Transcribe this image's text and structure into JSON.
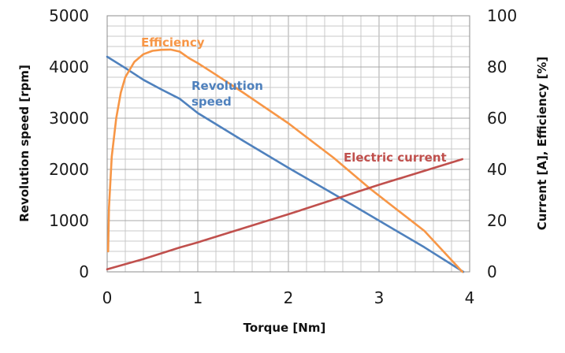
{
  "chart_data": {
    "type": "line",
    "xlabel": "Torque [Nm]",
    "ylabel_left": "Revolution speed [rpm]",
    "ylabel_right": "Current [A], Efficiency [%]",
    "x_ticks": [
      "0",
      "1",
      "2",
      "3",
      "4"
    ],
    "y_left_ticks": [
      "0",
      "1000",
      "2000",
      "3000",
      "4000",
      "5000"
    ],
    "y_right_ticks": [
      "0",
      "20",
      "40",
      "60",
      "80",
      "100"
    ],
    "xlim": [
      0,
      4
    ],
    "ylim_left": [
      0,
      5000
    ],
    "ylim_right": [
      0,
      100
    ],
    "grid": true,
    "series": [
      {
        "name": "Revolution speed",
        "name_lines": [
          "Revolution",
          "speed"
        ],
        "axis": "left",
        "color": "#4f81bd",
        "points": [
          [
            0,
            4200
          ],
          [
            0.2,
            3980
          ],
          [
            0.4,
            3750
          ],
          [
            0.6,
            3560
          ],
          [
            0.8,
            3380
          ],
          [
            1.0,
            3100
          ],
          [
            1.5,
            2560
          ],
          [
            2.0,
            2030
          ],
          [
            2.5,
            1520
          ],
          [
            3.0,
            1000
          ],
          [
            3.5,
            480
          ],
          [
            3.93,
            0
          ]
        ]
      },
      {
        "name": "Efficiency",
        "axis": "right",
        "color": "#f79646",
        "points": [
          [
            0.01,
            8
          ],
          [
            0.02,
            25
          ],
          [
            0.05,
            45
          ],
          [
            0.1,
            60
          ],
          [
            0.15,
            70
          ],
          [
            0.2,
            76
          ],
          [
            0.3,
            82
          ],
          [
            0.4,
            85
          ],
          [
            0.5,
            86.3
          ],
          [
            0.6,
            86.7
          ],
          [
            0.7,
            86.8
          ],
          [
            0.8,
            86
          ],
          [
            0.9,
            83.5
          ],
          [
            1.0,
            81.5
          ],
          [
            1.2,
            77
          ],
          [
            1.5,
            70
          ],
          [
            2.0,
            58
          ],
          [
            2.5,
            44.5
          ],
          [
            2.9,
            32.5
          ],
          [
            3.5,
            16
          ],
          [
            3.92,
            0
          ]
        ]
      },
      {
        "name": "Electric current",
        "axis": "right",
        "color": "#c0504d",
        "points": [
          [
            0,
            1
          ],
          [
            0.4,
            5
          ],
          [
            0.8,
            9.5
          ],
          [
            1.0,
            11.5
          ],
          [
            2.0,
            22.5
          ],
          [
            3.0,
            34
          ],
          [
            3.92,
            44
          ]
        ]
      }
    ]
  }
}
